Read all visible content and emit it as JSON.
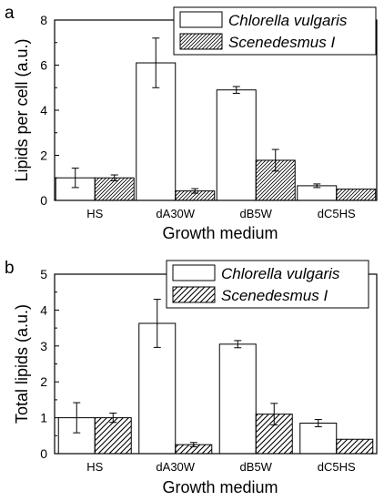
{
  "chart_data": [
    {
      "panel_label": "a",
      "type": "bar",
      "categories": [
        "HS",
        "dA30W",
        "dB5W",
        "dC5HS"
      ],
      "xlabel": "Growth medium",
      "ylabel": "Lipids per cell (a.u.)",
      "ylim": [
        0,
        8
      ],
      "yticks": [
        "0",
        "2",
        "4",
        "6",
        "8"
      ],
      "grid": false,
      "legend_position": "top-right",
      "series": [
        {
          "name": "Chlorella vulgaris",
          "pattern": "open",
          "values": [
            1.0,
            6.1,
            4.9,
            0.65
          ],
          "errors": [
            0.43,
            1.1,
            0.15,
            0.08
          ]
        },
        {
          "name": "Scenedesmus I",
          "pattern": "hatched",
          "values": [
            1.0,
            0.42,
            1.78,
            0.5
          ],
          "errors": [
            0.13,
            0.1,
            0.48,
            0.0
          ]
        }
      ]
    },
    {
      "panel_label": "b",
      "type": "bar",
      "categories": [
        "HS",
        "dA30W",
        "dB5W",
        "dC5HS"
      ],
      "xlabel": "Growth medium",
      "ylabel": "Total lipids (a.u.)",
      "ylim": [
        0,
        5
      ],
      "yticks": [
        "0",
        "1",
        "2",
        "3",
        "4",
        "5"
      ],
      "grid": false,
      "legend_position": "top-right",
      "series": [
        {
          "name": "Chlorella vulgaris",
          "pattern": "open",
          "values": [
            1.0,
            3.63,
            3.05,
            0.85
          ],
          "errors": [
            0.42,
            0.67,
            0.1,
            0.1
          ]
        },
        {
          "name": "Scenedesmus I",
          "pattern": "hatched",
          "values": [
            1.0,
            0.25,
            1.1,
            0.4
          ],
          "errors": [
            0.13,
            0.06,
            0.3,
            0.0
          ]
        }
      ]
    }
  ]
}
